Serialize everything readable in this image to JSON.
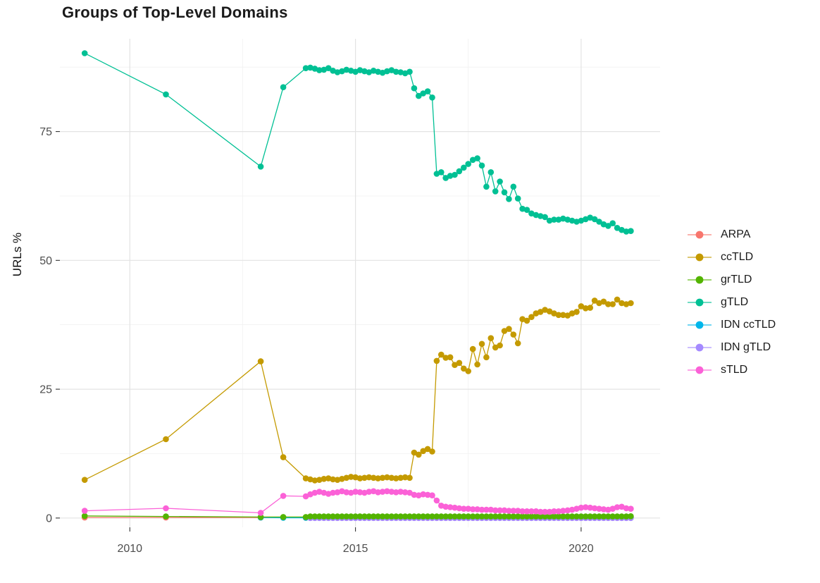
{
  "chart_data": {
    "type": "line",
    "title": "Groups of Top-Level Domains",
    "xlabel": "",
    "ylabel": "URLs %",
    "grid": "on",
    "legend_position": "right",
    "xlim": [
      2008.45,
      2021.75
    ],
    "ylim": [
      -1.8,
      93.0
    ],
    "x_ticks": [
      2010,
      2015,
      2020
    ],
    "x_minor": [
      2012.5,
      2017.5
    ],
    "y_ticks": [
      0,
      25,
      50,
      75
    ],
    "y_minor": [
      12.5,
      37.5,
      62.5,
      87.5
    ],
    "x_sparse": [
      2009.0,
      2010.8,
      2012.9,
      2013.4,
      2013.9
    ],
    "x_dense": [
      2014.0,
      2014.1,
      2014.2,
      2014.3,
      2014.4,
      2014.5,
      2014.6,
      2014.7,
      2014.8,
      2014.9,
      2015.0,
      2015.1,
      2015.2,
      2015.3,
      2015.4,
      2015.5,
      2015.6,
      2015.7,
      2015.8,
      2015.9,
      2016.0,
      2016.1,
      2016.2,
      2016.3,
      2016.4,
      2016.5,
      2016.6,
      2016.7,
      2016.8,
      2016.9,
      2017.0,
      2017.1,
      2017.2,
      2017.3,
      2017.4,
      2017.5,
      2017.6,
      2017.7,
      2017.8,
      2017.9,
      2018.0,
      2018.1,
      2018.2,
      2018.3,
      2018.4,
      2018.5,
      2018.6,
      2018.7,
      2018.8,
      2018.9,
      2019.0,
      2019.1,
      2019.2,
      2019.3,
      2019.4,
      2019.5,
      2019.6,
      2019.7,
      2019.8,
      2019.9,
      2020.0,
      2020.1,
      2020.2,
      2020.3,
      2020.4,
      2020.5,
      2020.6,
      2020.7,
      2020.8,
      2020.9,
      2021.0,
      2021.1
    ],
    "draw_order": [
      0,
      4,
      5,
      2,
      6,
      1,
      3
    ],
    "series": [
      {
        "name": "ARPA",
        "color": "#F8766D",
        "y_sparse": [
          0.1,
          0.1,
          0.1,
          0.1,
          0.05
        ],
        "y_dense_const": 0.05
      },
      {
        "name": "ccTLD",
        "color": "#C49A00",
        "y_sparse": [
          7.4,
          15.3,
          30.4,
          11.8,
          7.7
        ],
        "y_dense": [
          7.5,
          7.3,
          7.4,
          7.6,
          7.7,
          7.5,
          7.4,
          7.6,
          7.8,
          8.0,
          7.9,
          7.7,
          7.8,
          7.9,
          7.8,
          7.7,
          7.8,
          7.9,
          7.8,
          7.7,
          7.8,
          7.9,
          7.8,
          12.7,
          12.3,
          13.0,
          13.4,
          12.9,
          30.5,
          31.7,
          31.1,
          31.2,
          29.7,
          30.1,
          29.0,
          28.5,
          32.8,
          29.8,
          33.8,
          31.2,
          34.9,
          33.1,
          33.5,
          36.3,
          36.7,
          35.6,
          33.9,
          38.6,
          38.3,
          39.0,
          39.7,
          40.0,
          40.4,
          40.1,
          39.7,
          39.4,
          39.4,
          39.3,
          39.7,
          40.0,
          41.1,
          40.7,
          40.8,
          42.2,
          41.7,
          42.0,
          41.5,
          41.5,
          42.4,
          41.7,
          41.5,
          41.7
        ]
      },
      {
        "name": "grTLD",
        "color": "#53B400",
        "y_sparse": [
          0.4,
          0.3,
          0.2,
          0.2,
          0.2
        ],
        "y_dense": [
          0.3,
          0.3,
          0.3,
          0.3,
          0.3,
          0.3,
          0.3,
          0.3,
          0.3,
          0.3,
          0.3,
          0.3,
          0.3,
          0.3,
          0.3,
          0.3,
          0.3,
          0.3,
          0.3,
          0.3,
          0.3,
          0.3,
          0.3,
          0.3,
          0.3,
          0.3,
          0.3,
          0.3,
          0.3,
          0.3,
          0.3,
          0.3,
          0.3,
          0.3,
          0.3,
          0.3,
          0.3,
          0.3,
          0.3,
          0.3,
          0.3,
          0.3,
          0.3,
          0.3,
          0.3,
          0.3,
          0.3,
          0.3,
          0.3,
          0.3,
          0.3,
          0.3,
          0.3,
          0.3,
          0.3,
          0.3,
          0.3,
          0.3,
          0.3,
          0.3,
          0.3,
          0.3,
          0.3,
          0.3,
          0.3,
          0.3,
          0.3,
          0.3,
          0.3,
          0.3,
          0.3,
          0.35
        ]
      },
      {
        "name": "gTLD",
        "color": "#00C094",
        "y_sparse": [
          90.2,
          82.2,
          68.2,
          83.6,
          87.3
        ],
        "y_dense": [
          87.4,
          87.2,
          86.9,
          87.0,
          87.3,
          86.8,
          86.5,
          86.7,
          87.0,
          86.8,
          86.6,
          86.9,
          86.7,
          86.5,
          86.8,
          86.6,
          86.4,
          86.7,
          86.9,
          86.6,
          86.5,
          86.3,
          86.6,
          83.4,
          81.9,
          82.4,
          82.8,
          81.6,
          66.8,
          67.1,
          66.0,
          66.4,
          66.6,
          67.3,
          68.0,
          68.7,
          69.5,
          69.8,
          68.4,
          64.3,
          67.1,
          63.4,
          65.3,
          63.2,
          61.9,
          64.3,
          62.0,
          60.0,
          59.8,
          59.1,
          58.8,
          58.6,
          58.4,
          57.7,
          57.9,
          57.9,
          58.1,
          57.9,
          57.7,
          57.5,
          57.7,
          58.0,
          58.3,
          58.0,
          57.5,
          57.0,
          56.7,
          57.2,
          56.3,
          55.9,
          55.6,
          55.7
        ]
      },
      {
        "name": "IDN ccTLD",
        "color": "#00B6EB",
        "y_sparse": [
          null,
          null,
          0.1,
          0.05,
          0.05
        ],
        "y_dense_const": 0.1
      },
      {
        "name": "IDN gTLD",
        "color": "#A58AFF",
        "y_sparse": [
          null,
          null,
          null,
          null,
          null
        ],
        "y_dense_const": 0.0
      },
      {
        "name": "sTLD",
        "color": "#FB61D7",
        "y_sparse": [
          1.4,
          1.9,
          1.0,
          4.3,
          4.2
        ],
        "y_dense": [
          4.6,
          4.9,
          5.1,
          4.9,
          4.7,
          4.9,
          5.0,
          5.2,
          5.0,
          4.9,
          5.1,
          5.0,
          4.9,
          5.1,
          5.2,
          5.0,
          5.1,
          5.2,
          5.1,
          5.0,
          5.1,
          5.0,
          4.9,
          4.5,
          4.4,
          4.6,
          4.5,
          4.4,
          3.4,
          2.4,
          2.2,
          2.1,
          2.0,
          1.9,
          1.8,
          1.8,
          1.7,
          1.7,
          1.6,
          1.6,
          1.6,
          1.5,
          1.5,
          1.5,
          1.4,
          1.4,
          1.4,
          1.3,
          1.3,
          1.3,
          1.3,
          1.2,
          1.2,
          1.2,
          1.3,
          1.3,
          1.4,
          1.5,
          1.6,
          1.8,
          2.0,
          2.1,
          2.0,
          1.9,
          1.8,
          1.7,
          1.6,
          1.8,
          2.1,
          2.2,
          1.9,
          1.8
        ]
      }
    ],
    "style": {
      "panel_bg": "#ffffff",
      "grid_major": "#e3e3e3",
      "grid_minor": "#f1f1f1",
      "tick_color": "#333333",
      "tick_label_color": "#4d4d4d",
      "point_radius": 4.3,
      "line_width": 1.3
    }
  }
}
